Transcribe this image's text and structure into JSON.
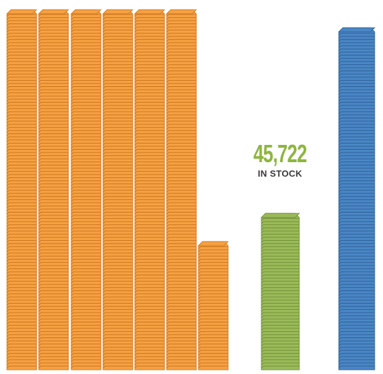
{
  "chart_data": {
    "type": "bar",
    "title": "",
    "xlabel": "",
    "ylabel": "",
    "categories": [
      "",
      "",
      ""
    ],
    "series": [
      {
        "values": [
          1,
          0.395,
          1.54
        ]
      }
    ],
    "bar_colors": [
      "#f5a043",
      "#9aba5a",
      "#4a86c4"
    ],
    "edge_colors": [
      "#c9731a",
      "#6e8d33",
      "#2c5f96"
    ],
    "annotation": {
      "value": "45,722",
      "caption": "IN STOCK",
      "value_color": "#8db63d"
    },
    "grid": false,
    "legend": "none"
  }
}
